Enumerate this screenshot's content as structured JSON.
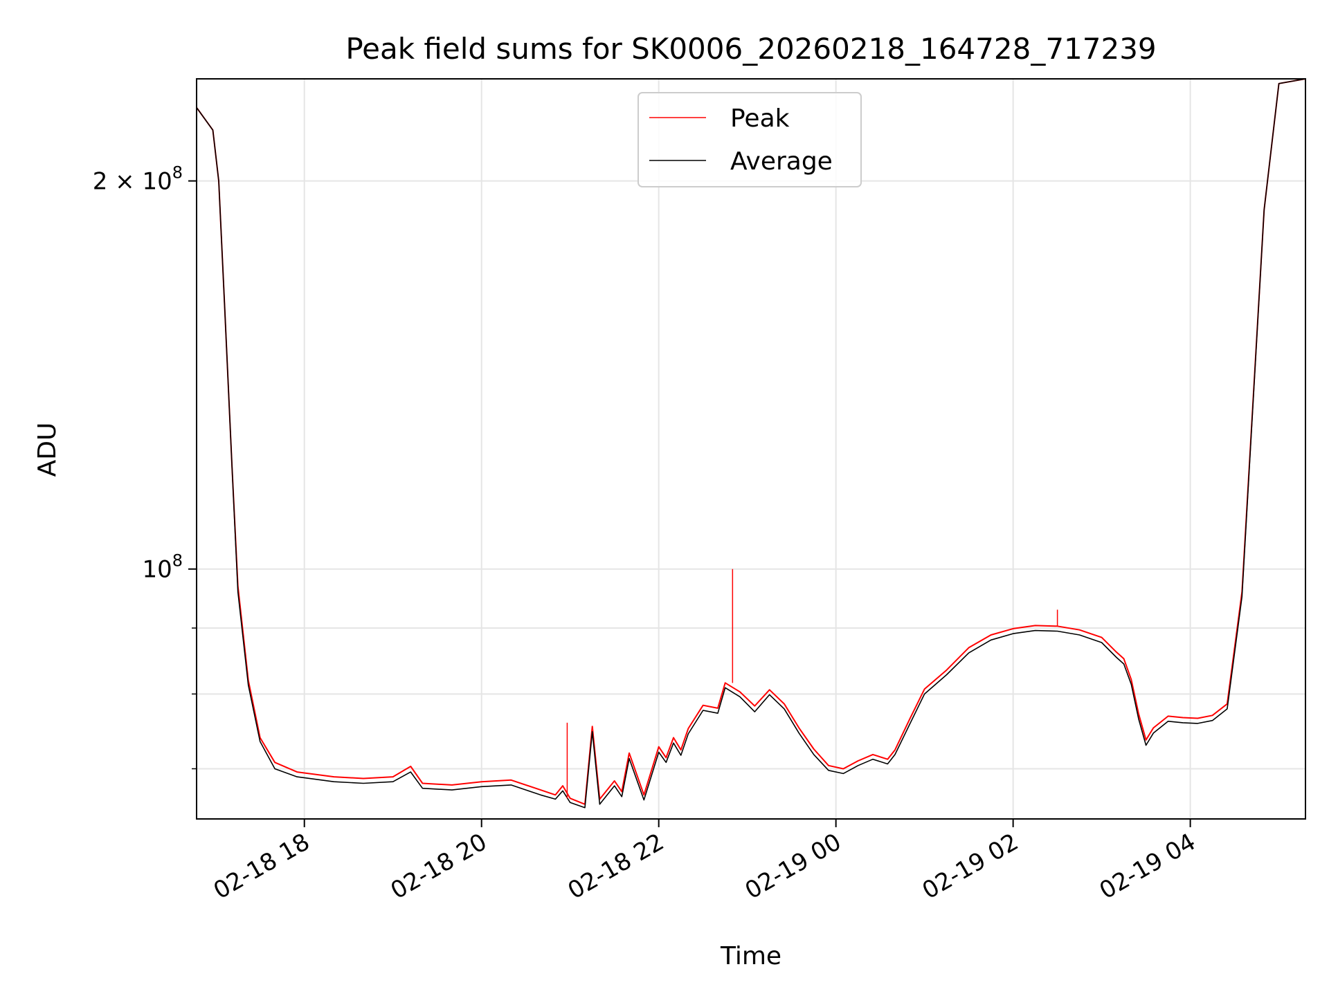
{
  "chart_data": {
    "type": "line",
    "title": "Peak field sums for SK0006_20260218_164728_717239",
    "xlabel": "Time",
    "ylabel": "ADU",
    "x_tick_labels": [
      "02-18 18",
      "02-18 20",
      "02-18 22",
      "02-19 00",
      "02-19 02",
      "02-19 04"
    ],
    "y_tick_labels": [
      {
        "value": 200000000,
        "mantissa": "2",
        "base": "10",
        "exponent": "8"
      },
      {
        "value": 100000000,
        "mantissa": "",
        "base": "10",
        "exponent": "8"
      }
    ],
    "y_scale": "log",
    "ylim": [
      64000000,
      240000000
    ],
    "xlim": [
      "2026-02-18 16:47",
      "2026-02-19 05:18"
    ],
    "grid": true,
    "legend_position": "upper center",
    "series": [
      {
        "name": "Peak",
        "color": "#ff0000",
        "points": [
          [
            "2026-02-18 16:47",
            228000000
          ],
          [
            "2026-02-18 16:58",
            219000000
          ],
          [
            "2026-02-18 17:02",
            200000000
          ],
          [
            "2026-02-18 17:06",
            160000000
          ],
          [
            "2026-02-18 17:11",
            120000000
          ],
          [
            "2026-02-18 17:15",
            97000000
          ],
          [
            "2026-02-18 17:22",
            82000000
          ],
          [
            "2026-02-18 17:30",
            74000000
          ],
          [
            "2026-02-18 17:40",
            70800000
          ],
          [
            "2026-02-18 17:55",
            69600000
          ],
          [
            "2026-02-18 18:20",
            69000000
          ],
          [
            "2026-02-18 18:40",
            68800000
          ],
          [
            "2026-02-18 19:00",
            69000000
          ],
          [
            "2026-02-18 19:12",
            70300000
          ],
          [
            "2026-02-18 19:20",
            68200000
          ],
          [
            "2026-02-18 19:40",
            68000000
          ],
          [
            "2026-02-18 20:00",
            68400000
          ],
          [
            "2026-02-18 20:20",
            68600000
          ],
          [
            "2026-02-18 20:40",
            67400000
          ],
          [
            "2026-02-18 20:50",
            66800000
          ],
          [
            "2026-02-18 20:55",
            67900000
          ],
          [
            "2026-02-18 21:00",
            66400000
          ],
          [
            "2026-02-18 21:10",
            65700000
          ],
          [
            "2026-02-18 21:15",
            75500000
          ],
          [
            "2026-02-18 21:20",
            66300000
          ],
          [
            "2026-02-18 21:30",
            68500000
          ],
          [
            "2026-02-18 21:35",
            67200000
          ],
          [
            "2026-02-18 21:40",
            72000000
          ],
          [
            "2026-02-18 21:50",
            66800000
          ],
          [
            "2026-02-18 22:00",
            72800000
          ],
          [
            "2026-02-18 22:05",
            71400000
          ],
          [
            "2026-02-18 22:10",
            74000000
          ],
          [
            "2026-02-18 22:15",
            72400000
          ],
          [
            "2026-02-18 22:20",
            75200000
          ],
          [
            "2026-02-18 22:30",
            78400000
          ],
          [
            "2026-02-18 22:40",
            78000000
          ],
          [
            "2026-02-18 22:45",
            81600000
          ],
          [
            "2026-02-18 22:55",
            80300000
          ],
          [
            "2026-02-18 23:05",
            78300000
          ],
          [
            "2026-02-18 23:15",
            80600000
          ],
          [
            "2026-02-18 23:25",
            78600000
          ],
          [
            "2026-02-18 23:35",
            75300000
          ],
          [
            "2026-02-18 23:45",
            72500000
          ],
          [
            "2026-02-18 23:55",
            70400000
          ],
          [
            "2026-02-19 00:05",
            70000000
          ],
          [
            "2026-02-19 00:15",
            71000000
          ],
          [
            "2026-02-19 00:25",
            71800000
          ],
          [
            "2026-02-19 00:35",
            71200000
          ],
          [
            "2026-02-19 00:40",
            72400000
          ],
          [
            "2026-02-19 00:50",
            76500000
          ],
          [
            "2026-02-19 01:00",
            80700000
          ],
          [
            "2026-02-19 01:15",
            83500000
          ],
          [
            "2026-02-19 01:30",
            86900000
          ],
          [
            "2026-02-19 01:45",
            88900000
          ],
          [
            "2026-02-19 02:00",
            89900000
          ],
          [
            "2026-02-19 02:15",
            90400000
          ],
          [
            "2026-02-19 02:30",
            90300000
          ],
          [
            "2026-02-19 02:45",
            89700000
          ],
          [
            "2026-02-19 03:00",
            88500000
          ],
          [
            "2026-02-19 03:10",
            86200000
          ],
          [
            "2026-02-19 03:15",
            85200000
          ],
          [
            "2026-02-19 03:20",
            82100000
          ],
          [
            "2026-02-19 03:25",
            77200000
          ],
          [
            "2026-02-19 03:30",
            73700000
          ],
          [
            "2026-02-19 03:35",
            75300000
          ],
          [
            "2026-02-19 03:45",
            76900000
          ],
          [
            "2026-02-19 03:55",
            76700000
          ],
          [
            "2026-02-19 04:05",
            76600000
          ],
          [
            "2026-02-19 04:15",
            77000000
          ],
          [
            "2026-02-19 04:25",
            78600000
          ],
          [
            "2026-02-19 04:35",
            96000000
          ],
          [
            "2026-02-19 04:50",
            190000000
          ],
          [
            "2026-02-19 05:00",
            238000000
          ],
          [
            "2026-02-19 05:18",
            240000000
          ]
        ]
      },
      {
        "name": "Average",
        "color": "#000000",
        "points": [
          [
            "2026-02-18 16:47",
            228000000
          ],
          [
            "2026-02-18 16:58",
            219000000
          ],
          [
            "2026-02-18 17:02",
            200000000
          ],
          [
            "2026-02-18 17:06",
            160000000
          ],
          [
            "2026-02-18 17:11",
            120000000
          ],
          [
            "2026-02-18 17:15",
            96000000
          ],
          [
            "2026-02-18 17:22",
            81300000
          ],
          [
            "2026-02-18 17:30",
            73500000
          ],
          [
            "2026-02-18 17:40",
            70000000
          ],
          [
            "2026-02-18 17:55",
            69000000
          ],
          [
            "2026-02-18 18:20",
            68400000
          ],
          [
            "2026-02-18 18:40",
            68200000
          ],
          [
            "2026-02-18 19:00",
            68400000
          ],
          [
            "2026-02-18 19:12",
            69600000
          ],
          [
            "2026-02-18 19:20",
            67600000
          ],
          [
            "2026-02-18 19:40",
            67400000
          ],
          [
            "2026-02-18 20:00",
            67800000
          ],
          [
            "2026-02-18 20:20",
            68000000
          ],
          [
            "2026-02-18 20:40",
            66800000
          ],
          [
            "2026-02-18 20:50",
            66300000
          ],
          [
            "2026-02-18 20:55",
            67300000
          ],
          [
            "2026-02-18 21:00",
            65900000
          ],
          [
            "2026-02-18 21:10",
            65300000
          ],
          [
            "2026-02-18 21:15",
            74800000
          ],
          [
            "2026-02-18 21:20",
            65700000
          ],
          [
            "2026-02-18 21:30",
            67900000
          ],
          [
            "2026-02-18 21:35",
            66600000
          ],
          [
            "2026-02-18 21:40",
            71300000
          ],
          [
            "2026-02-18 21:50",
            66200000
          ],
          [
            "2026-02-18 22:00",
            72100000
          ],
          [
            "2026-02-18 22:05",
            70800000
          ],
          [
            "2026-02-18 22:10",
            73300000
          ],
          [
            "2026-02-18 22:15",
            71700000
          ],
          [
            "2026-02-18 22:20",
            74500000
          ],
          [
            "2026-02-18 22:30",
            77700000
          ],
          [
            "2026-02-18 22:40",
            77300000
          ],
          [
            "2026-02-18 22:45",
            80900000
          ],
          [
            "2026-02-18 22:55",
            79600000
          ],
          [
            "2026-02-18 23:05",
            77500000
          ],
          [
            "2026-02-18 23:15",
            79900000
          ],
          [
            "2026-02-18 23:25",
            77900000
          ],
          [
            "2026-02-18 23:35",
            74600000
          ],
          [
            "2026-02-18 23:45",
            71800000
          ],
          [
            "2026-02-18 23:55",
            69800000
          ],
          [
            "2026-02-19 00:05",
            69400000
          ],
          [
            "2026-02-19 00:15",
            70400000
          ],
          [
            "2026-02-19 00:25",
            71200000
          ],
          [
            "2026-02-19 00:35",
            70600000
          ],
          [
            "2026-02-19 00:40",
            71800000
          ],
          [
            "2026-02-19 00:50",
            75800000
          ],
          [
            "2026-02-19 01:00",
            80000000
          ],
          [
            "2026-02-19 01:15",
            82800000
          ],
          [
            "2026-02-19 01:30",
            86100000
          ],
          [
            "2026-02-19 01:45",
            88100000
          ],
          [
            "2026-02-19 02:00",
            89100000
          ],
          [
            "2026-02-19 02:15",
            89600000
          ],
          [
            "2026-02-19 02:30",
            89500000
          ],
          [
            "2026-02-19 02:45",
            88900000
          ],
          [
            "2026-02-19 03:00",
            87700000
          ],
          [
            "2026-02-19 03:10",
            85400000
          ],
          [
            "2026-02-19 03:15",
            84400000
          ],
          [
            "2026-02-19 03:20",
            81400000
          ],
          [
            "2026-02-19 03:25",
            76500000
          ],
          [
            "2026-02-19 03:30",
            73000000
          ],
          [
            "2026-02-19 03:35",
            74600000
          ],
          [
            "2026-02-19 03:45",
            76200000
          ],
          [
            "2026-02-19 03:55",
            76000000
          ],
          [
            "2026-02-19 04:05",
            75900000
          ],
          [
            "2026-02-19 04:15",
            76300000
          ],
          [
            "2026-02-19 04:25",
            77900000
          ],
          [
            "2026-02-19 04:35",
            95200000
          ],
          [
            "2026-02-19 04:50",
            190000000
          ],
          [
            "2026-02-19 05:00",
            238000000
          ],
          [
            "2026-02-19 05:18",
            240000000
          ]
        ]
      }
    ],
    "annotations_spikes": [
      {
        "series": "Peak",
        "x": "2026-02-18 22:50",
        "y": 100000000
      },
      {
        "series": "Peak",
        "x": "2026-02-19 02:30",
        "y": 93000000
      },
      {
        "series": "Peak",
        "x": "2026-02-18 20:58",
        "y": 76000000
      }
    ]
  }
}
